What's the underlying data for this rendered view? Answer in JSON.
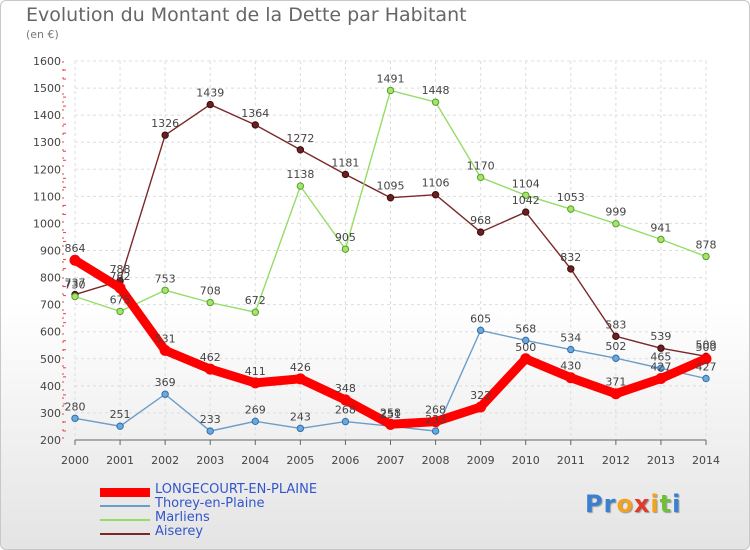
{
  "title": "Evolution du Montant de la Dette par Habitant",
  "unit_label": "(en €)",
  "logo": {
    "letters": [
      "P",
      "r",
      "o",
      "x",
      "i",
      "t",
      "i"
    ],
    "colors": [
      "#3a7fd0",
      "#3a7fd0",
      "#f2a21e",
      "#e03a2a",
      "#f2a21e",
      "#6fbf3a",
      "#3a7fd0"
    ]
  },
  "chart_data": {
    "type": "line",
    "title": "Evolution du Montant de la Dette par Habitant",
    "ylabel": "(en €)",
    "xlabel": "",
    "x": [
      "2000",
      "2001",
      "2002",
      "2003",
      "2004",
      "2005",
      "2006",
      "2007",
      "2008",
      "2009",
      "2010",
      "2011",
      "2012",
      "2013",
      "2014"
    ],
    "ylim": [
      200,
      1600
    ],
    "yticks": [
      "200",
      "300",
      "400",
      "500",
      "600",
      "700",
      "800",
      "900",
      "1000",
      "1100",
      "1200",
      "1300",
      "1400",
      "1500",
      "1600"
    ],
    "grid": true,
    "legend_position": "bottom-left",
    "series": [
      {
        "name": "LONGECOURT-EN-PLAINE",
        "color": "#ff0000",
        "values": [
          864,
          762,
          531,
          462,
          411,
          426,
          348,
          258,
          268,
          322,
          500,
          430,
          371,
          427,
          500
        ],
        "labels": [
          "864",
          "762",
          "531",
          "462",
          "411",
          "426",
          "348",
          "258",
          "268",
          "322",
          "500",
          "430",
          "371",
          "427",
          "500"
        ]
      },
      {
        "name": "Thorey-en-Plaine",
        "color": "#6c9cc8",
        "values": [
          280,
          251,
          369,
          233,
          269,
          243,
          268,
          251,
          233,
          605,
          568,
          534,
          502,
          465,
          427
        ],
        "labels": [
          "280",
          "251",
          "369",
          "233",
          "269",
          "243",
          "268",
          "251",
          "233",
          "605",
          "568",
          "534",
          "502",
          "465",
          "427"
        ]
      },
      {
        "name": "Marliens",
        "color": "#96dc68",
        "values": [
          730,
          675,
          753,
          708,
          672,
          1138,
          905,
          1491,
          1448,
          1170,
          1104,
          1053,
          999,
          941,
          878
        ],
        "labels": [
          "730",
          "675",
          "753",
          "708",
          "672",
          "1138",
          "905",
          "1491",
          "1448",
          "1170",
          "1104",
          "1053",
          "999",
          "941",
          "878"
        ]
      },
      {
        "name": "Aiserey",
        "color": "#7a2828",
        "values": [
          737,
          788,
          1326,
          1439,
          1364,
          1272,
          1181,
          1095,
          1106,
          968,
          1042,
          832,
          583,
          539,
          509
        ],
        "labels": [
          "737",
          "788",
          "1326",
          "1439",
          "1364",
          "1272",
          "1181",
          "1095",
          "1106",
          "968",
          "1042",
          "832",
          "583",
          "539",
          "509"
        ]
      }
    ]
  }
}
